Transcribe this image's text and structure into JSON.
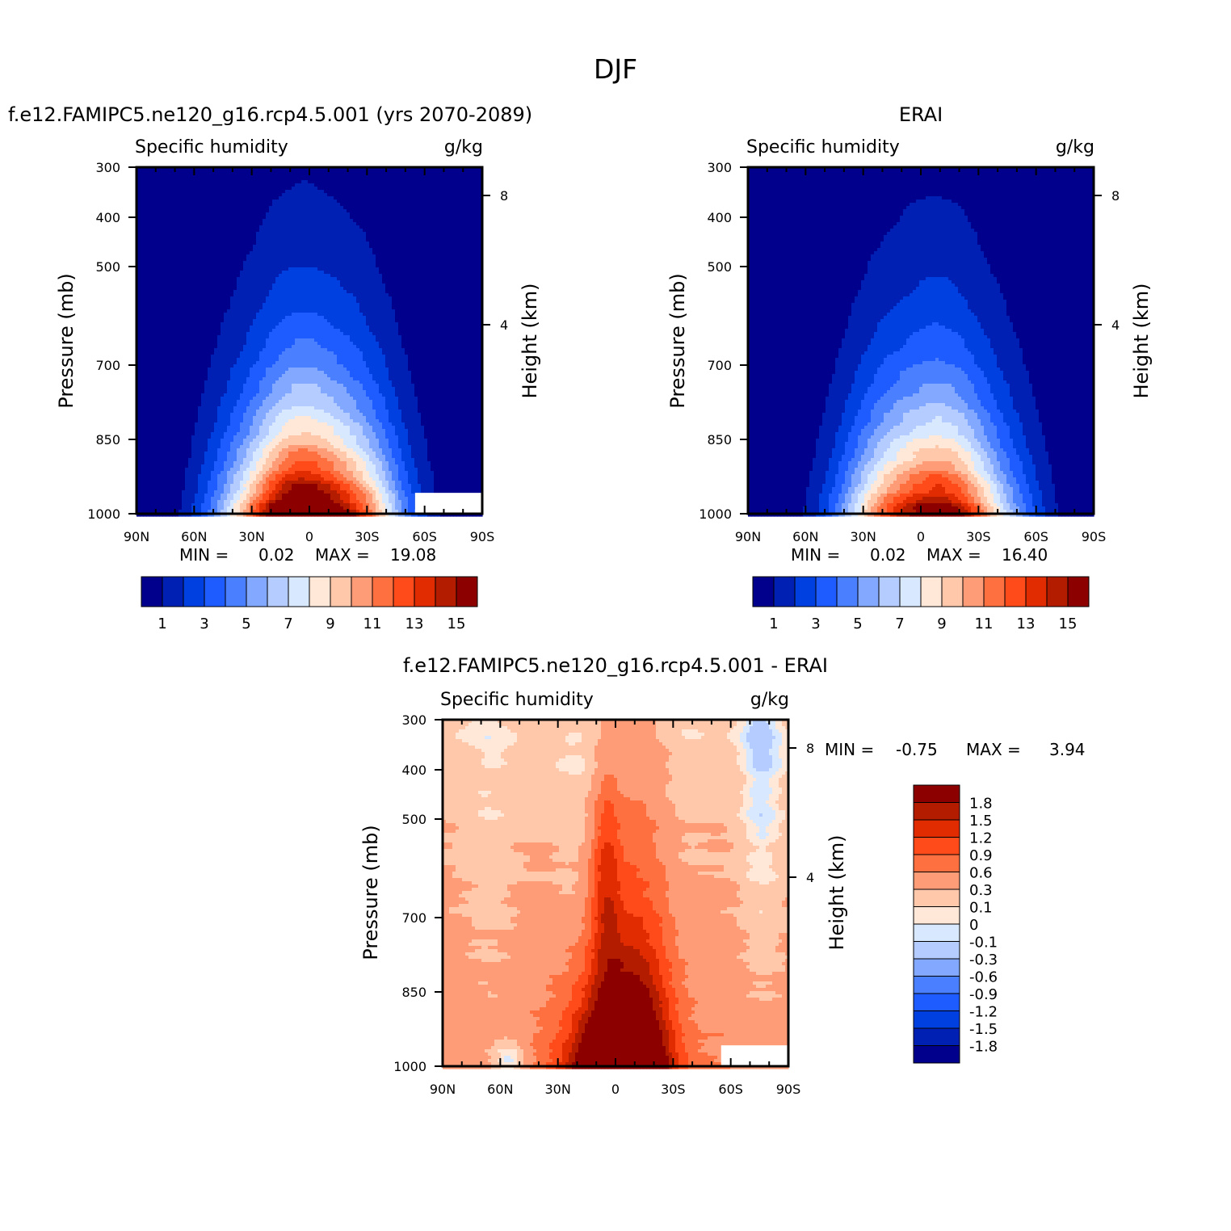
{
  "page_title": "DJF",
  "colors": {
    "abs_palette": [
      "#00008c",
      "#0020b4",
      "#0040e0",
      "#1f5cff",
      "#4a80ff",
      "#82a8ff",
      "#b4ccff",
      "#d8e8ff",
      "#ffe8d8",
      "#ffc8aa",
      "#ff9c78",
      "#ff7040",
      "#ff4a1a",
      "#e02c00",
      "#b41c00",
      "#8c0000"
    ],
    "diff_palette": [
      "#00008c",
      "#0020b4",
      "#0040e0",
      "#1f5cff",
      "#4a80ff",
      "#82a8ff",
      "#b4ccff",
      "#d8e8ff",
      "#ffe8d8",
      "#ffc8aa",
      "#ff9c78",
      "#ff7040",
      "#ff4a1a",
      "#e02c00",
      "#b41c00",
      "#8c0000"
    ]
  },
  "chart_data": [
    {
      "type": "heatmap",
      "id": "model",
      "title": "f.e12.FAMIPC5.ne120_g16.rcp4.5.001 (yrs 2070-2089)",
      "left_label": "Specific humidity",
      "units": "g/kg",
      "ylabel": "Pressure (mb)",
      "ylabel_right": "Height (km)",
      "y_ticks": [
        "300",
        "400",
        "500",
        "700",
        "850",
        "1000"
      ],
      "y_ticks_right": [
        "8",
        "4"
      ],
      "x_ticks": [
        "90N",
        "60N",
        "30N",
        "0",
        "30S",
        "60S",
        "90S"
      ],
      "ylim": [
        1000,
        300
      ],
      "xlim": [
        "90N",
        "90S"
      ],
      "stats": {
        "min_label": "MIN =",
        "min": "0.02",
        "max_label": "MAX =",
        "max": "19.08"
      },
      "colorbar_labels": [
        "1",
        "3",
        "5",
        "7",
        "9",
        "11",
        "13",
        "15"
      ],
      "levels": [
        1,
        2,
        3,
        4,
        5,
        6,
        7,
        8,
        9,
        10,
        11,
        12,
        13,
        14,
        15
      ],
      "peak_g_per_kg": 19.08,
      "peak_latitude": 0,
      "masked_region": {
        "lat_from": -55,
        "lat_to": -90,
        "p_from": 930,
        "p_to": 1000
      }
    },
    {
      "type": "heatmap",
      "id": "obs",
      "title": "ERAI",
      "left_label": "Specific humidity",
      "units": "g/kg",
      "ylabel": "Pressure (mb)",
      "ylabel_right": "Height (km)",
      "y_ticks": [
        "300",
        "400",
        "500",
        "700",
        "850",
        "1000"
      ],
      "y_ticks_right": [
        "8",
        "4"
      ],
      "x_ticks": [
        "90N",
        "60N",
        "30N",
        "0",
        "30S",
        "60S",
        "90S"
      ],
      "ylim": [
        1000,
        300
      ],
      "stats": {
        "min_label": "MIN =",
        "min": "0.02",
        "max_label": "MAX =",
        "max": "16.40"
      },
      "colorbar_labels": [
        "1",
        "3",
        "5",
        "7",
        "9",
        "11",
        "13",
        "15"
      ],
      "levels": [
        1,
        2,
        3,
        4,
        5,
        6,
        7,
        8,
        9,
        10,
        11,
        12,
        13,
        14,
        15
      ],
      "peak_g_per_kg": 16.4,
      "peak_latitude": -5
    },
    {
      "type": "heatmap",
      "id": "diff",
      "title": "f.e12.FAMIPC5.ne120_g16.rcp4.5.001 - ERAI",
      "left_label": "Specific humidity",
      "units": "g/kg",
      "ylabel": "Pressure (mb)",
      "ylabel_right": "Height (km)",
      "y_ticks": [
        "300",
        "400",
        "500",
        "700",
        "850",
        "1000"
      ],
      "y_ticks_right": [
        "8",
        "4"
      ],
      "x_ticks": [
        "90N",
        "60N",
        "30N",
        "0",
        "30S",
        "60S",
        "90S"
      ],
      "ylim": [
        1000,
        300
      ],
      "stats": {
        "min_label": "MIN =",
        "min": "-0.75",
        "max_label": "MAX =",
        "max": "3.94"
      },
      "colorbar_labels": [
        "1.8",
        "1.5",
        "1.2",
        "0.9",
        "0.6",
        "0.3",
        "0.1",
        "0",
        "-0.1",
        "-0.3",
        "-0.6",
        "-0.9",
        "-1.2",
        "-1.5",
        "-1.8"
      ],
      "levels": [
        -1.8,
        -1.5,
        -1.2,
        -0.9,
        -0.6,
        -0.3,
        -0.1,
        0,
        0.1,
        0.3,
        0.6,
        0.9,
        1.2,
        1.5,
        1.8
      ],
      "min_g_per_kg": -0.75,
      "max_g_per_kg": 3.94,
      "masked_region": {
        "lat_from": -55,
        "lat_to": -90,
        "p_from": 930,
        "p_to": 1000
      }
    }
  ]
}
